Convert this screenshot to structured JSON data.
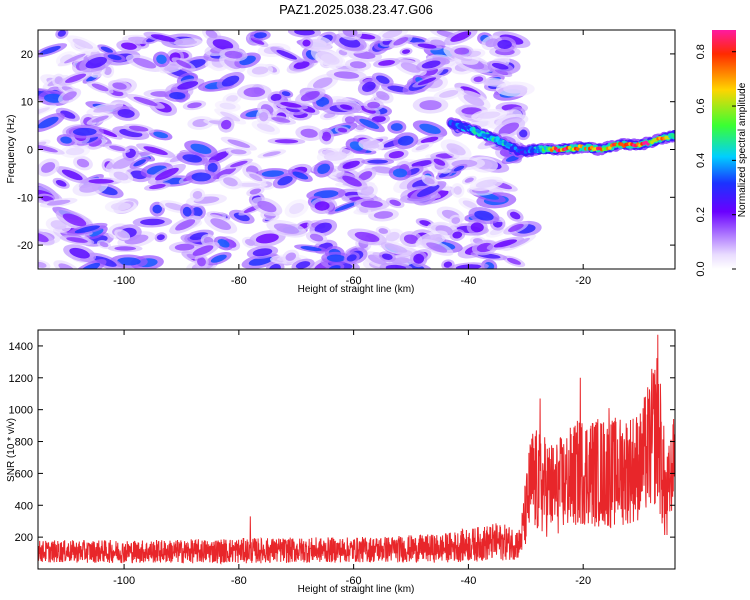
{
  "figure": {
    "title": "PAZ1.2025.038.23.47.G06"
  },
  "colors": {
    "frame": "#000000",
    "snr_line": "#e8262a",
    "spectrogram_colormap": [
      "#ffffff",
      "#e9dcff",
      "#b07cff",
      "#6a00ff",
      "#1a33ff",
      "#00cfff",
      "#39ff33",
      "#ffd400",
      "#ff2a00",
      "#ff1aa0"
    ]
  },
  "chart_data": [
    {
      "type": "heatmap",
      "title": "",
      "xlabel": "Height of straight line (km)",
      "ylabel": "Frequency (Hz)",
      "xlim": [
        -115,
        -4
      ],
      "ylim": [
        -25,
        25
      ],
      "xticks": [
        -100,
        -80,
        -60,
        -40,
        -20
      ],
      "yticks": [
        20,
        10,
        0,
        -10,
        -20
      ],
      "xtick_labels": [
        "-100",
        "-80",
        "-60",
        "-40",
        "-20"
      ],
      "ytick_labels": [
        "20",
        "10",
        "0",
        "-10",
        "-20"
      ],
      "colorbar": {
        "label": "Normalized spectral amplitude",
        "range": [
          0.0,
          0.88
        ],
        "ticks": [
          0.0,
          0.2,
          0.4,
          0.6,
          0.8
        ],
        "tick_labels": [
          "0.0",
          "0.2",
          "0.4",
          "0.6",
          "0.8"
        ]
      },
      "noise_region": {
        "x_range": [
          -115,
          -30
        ],
        "y_range": [
          -25,
          25
        ],
        "amplitude_range": [
          0.05,
          0.35
        ]
      },
      "signal_ridge": {
        "description_points": [
          {
            "x": -43,
            "y": 5.5,
            "amp": 0.3
          },
          {
            "x": -38,
            "y": 3.5,
            "amp": 0.45
          },
          {
            "x": -35,
            "y": 2.0,
            "amp": 0.4
          },
          {
            "x": -31,
            "y": -0.5,
            "amp": 0.3
          },
          {
            "x": -28,
            "y": 0.0,
            "amp": 0.4
          },
          {
            "x": -24,
            "y": 0.0,
            "amp": 0.75
          },
          {
            "x": -20,
            "y": 0.5,
            "amp": 0.6
          },
          {
            "x": -17,
            "y": 0.0,
            "amp": 0.7
          },
          {
            "x": -14,
            "y": 1.0,
            "amp": 0.7
          },
          {
            "x": -10,
            "y": 1.0,
            "amp": 0.8
          },
          {
            "x": -7,
            "y": 2.0,
            "amp": 0.65
          },
          {
            "x": -4,
            "y": 3.0,
            "amp": 0.55
          }
        ]
      }
    },
    {
      "type": "line",
      "title": "",
      "xlabel": "Height of straight line (km)",
      "ylabel": "SNR (10 * v/v)",
      "xlim": [
        -115,
        -4
      ],
      "ylim": [
        0,
        1500
      ],
      "xticks": [
        -100,
        -80,
        -60,
        -40,
        -20
      ],
      "yticks": [
        200,
        400,
        600,
        800,
        1000,
        1200,
        1400
      ],
      "xtick_labels": [
        "-100",
        "-80",
        "-60",
        "-40",
        "-20"
      ],
      "ytick_labels": [
        "200",
        "400",
        "600",
        "800",
        "1000",
        "1200",
        "1400"
      ],
      "series": [
        {
          "color": "#e8262a",
          "envelope": [
            {
              "x": -115,
              "mean": 110,
              "spread": 70
            },
            {
              "x": -90,
              "mean": 110,
              "spread": 75
            },
            {
              "x": -80,
              "mean": 115,
              "spread": 80
            },
            {
              "x": -60,
              "mean": 120,
              "spread": 80
            },
            {
              "x": -45,
              "mean": 130,
              "spread": 90
            },
            {
              "x": -35,
              "mean": 170,
              "spread": 120
            },
            {
              "x": -31,
              "mean": 160,
              "spread": 100
            },
            {
              "x": -29,
              "mean": 550,
              "spread": 350
            },
            {
              "x": -25,
              "mean": 500,
              "spread": 300
            },
            {
              "x": -20,
              "mean": 620,
              "spread": 350
            },
            {
              "x": -15,
              "mean": 600,
              "spread": 350
            },
            {
              "x": -10,
              "mean": 650,
              "spread": 350
            },
            {
              "x": -7,
              "mean": 900,
              "spread": 500
            },
            {
              "x": -5.5,
              "mean": 400,
              "spread": 300
            },
            {
              "x": -4,
              "mean": 750,
              "spread": 250
            }
          ],
          "peaks": [
            {
              "x": -78,
              "y": 330
            },
            {
              "x": -27.5,
              "y": 1070
            },
            {
              "x": -20.5,
              "y": 1200
            },
            {
              "x": -15.5,
              "y": 1010
            },
            {
              "x": -7,
              "y": 1470
            }
          ]
        }
      ]
    }
  ]
}
